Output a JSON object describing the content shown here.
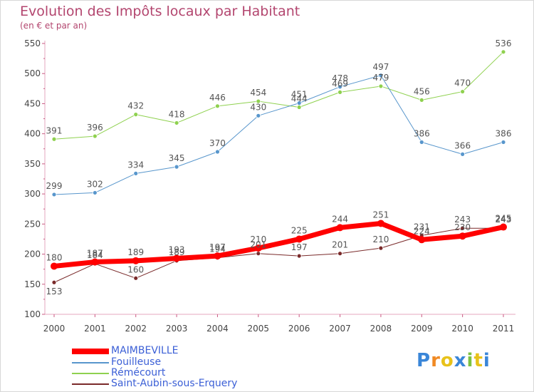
{
  "title": "Evolution des Impôts locaux par Habitant",
  "subtitle": "(en € et par an)",
  "logo": "Proxiti",
  "chart_data": {
    "type": "line",
    "x": [
      "2000",
      "2001",
      "2002",
      "2003",
      "2004",
      "2005",
      "2006",
      "2007",
      "2008",
      "2009",
      "2010",
      "2011"
    ],
    "ylim": [
      100,
      550
    ],
    "yticks": [
      100,
      150,
      200,
      250,
      300,
      350,
      400,
      450,
      500,
      550
    ],
    "grid": false,
    "legend": "bottom-left",
    "series": [
      {
        "name": "MAIMBEVILLE",
        "color": "#ff0000",
        "values": [
          180,
          187,
          189,
          193,
          197,
          210,
          225,
          244,
          251,
          224,
          230,
          245
        ]
      },
      {
        "name": "Fouilleuse",
        "color": "#5896cc",
        "values": [
          299,
          302,
          334,
          345,
          370,
          430,
          451,
          478,
          497,
          386,
          366,
          386
        ]
      },
      {
        "name": "Rémécourt",
        "color": "#8fd14f",
        "values": [
          391,
          396,
          432,
          418,
          446,
          454,
          444,
          469,
          479,
          456,
          470,
          536
        ]
      },
      {
        "name": "Saint-Aubin-sous-Erquery",
        "color": "#7a2a2a",
        "values": [
          153,
          184,
          160,
          189,
          194,
          201,
          197,
          201,
          210,
          231,
          243,
          243
        ]
      }
    ]
  }
}
